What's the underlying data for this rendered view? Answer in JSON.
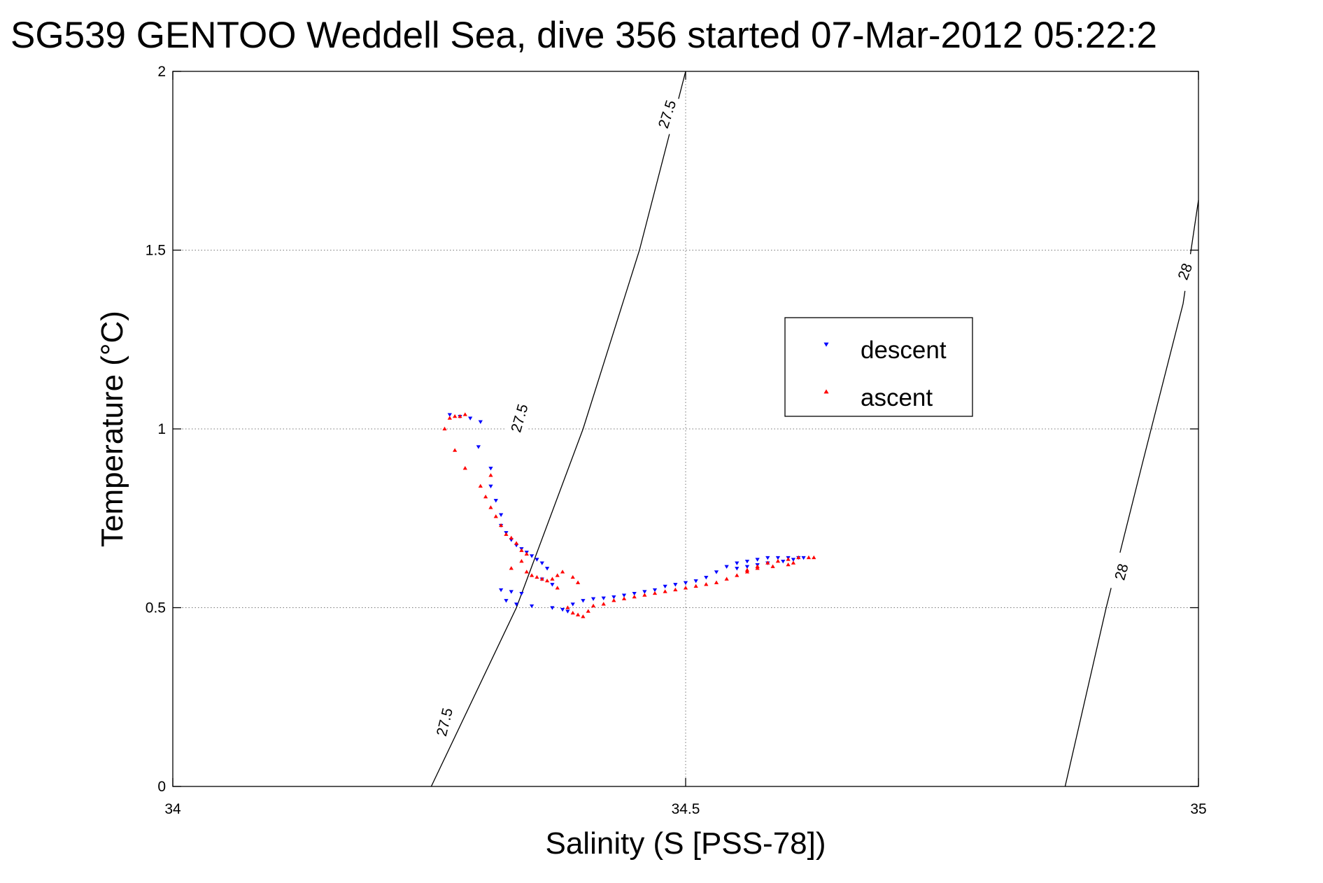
{
  "chart_data": {
    "type": "scatter",
    "title": "SG539 GENTOO Weddell Sea, dive 356 started 07-Mar-2012 05:22:2",
    "xlabel": "Salinity (S [PSS-78])",
    "ylabel": "Temperature (°C)",
    "xlim": [
      34,
      35
    ],
    "ylim": [
      0,
      2
    ],
    "x_ticks": [
      34,
      34.5,
      35
    ],
    "x_tick_labels": [
      "34",
      "34.5",
      "35"
    ],
    "y_ticks": [
      0,
      0.5,
      1,
      1.5,
      2
    ],
    "y_tick_labels": [
      "0",
      "0.5",
      "1",
      "1.5",
      "2"
    ],
    "grid": true,
    "legend_position": "upper-right",
    "series": [
      {
        "name": "descent",
        "color": "#0000ff",
        "marker": "triangle-down",
        "points": [
          [
            34.27,
            1.04
          ],
          [
            34.28,
            1.035
          ],
          [
            34.29,
            1.03
          ],
          [
            34.3,
            1.02
          ],
          [
            34.298,
            0.95
          ],
          [
            34.31,
            0.89
          ],
          [
            34.31,
            0.84
          ],
          [
            34.315,
            0.8
          ],
          [
            34.32,
            0.76
          ],
          [
            34.32,
            0.73
          ],
          [
            34.325,
            0.71
          ],
          [
            34.33,
            0.69
          ],
          [
            34.335,
            0.675
          ],
          [
            34.34,
            0.665
          ],
          [
            34.345,
            0.655
          ],
          [
            34.35,
            0.645
          ],
          [
            34.355,
            0.635
          ],
          [
            34.36,
            0.625
          ],
          [
            34.365,
            0.61
          ],
          [
            34.36,
            0.58
          ],
          [
            34.37,
            0.565
          ],
          [
            34.32,
            0.55
          ],
          [
            34.33,
            0.545
          ],
          [
            34.34,
            0.54
          ],
          [
            34.325,
            0.52
          ],
          [
            34.335,
            0.51
          ],
          [
            34.35,
            0.505
          ],
          [
            34.37,
            0.5
          ],
          [
            34.38,
            0.495
          ],
          [
            34.385,
            0.49
          ],
          [
            34.39,
            0.51
          ],
          [
            34.4,
            0.52
          ],
          [
            34.41,
            0.525
          ],
          [
            34.42,
            0.527
          ],
          [
            34.43,
            0.53
          ],
          [
            34.44,
            0.535
          ],
          [
            34.45,
            0.54
          ],
          [
            34.46,
            0.545
          ],
          [
            34.47,
            0.55
          ],
          [
            34.48,
            0.56
          ],
          [
            34.49,
            0.565
          ],
          [
            34.5,
            0.57
          ],
          [
            34.51,
            0.575
          ],
          [
            34.52,
            0.585
          ],
          [
            34.53,
            0.6
          ],
          [
            34.54,
            0.615
          ],
          [
            34.55,
            0.625
          ],
          [
            34.56,
            0.63
          ],
          [
            34.57,
            0.635
          ],
          [
            34.58,
            0.64
          ],
          [
            34.59,
            0.64
          ],
          [
            34.6,
            0.64
          ],
          [
            34.61,
            0.64
          ],
          [
            34.615,
            0.64
          ],
          [
            34.605,
            0.635
          ],
          [
            34.595,
            0.63
          ],
          [
            34.58,
            0.625
          ],
          [
            34.57,
            0.62
          ],
          [
            34.56,
            0.615
          ],
          [
            34.55,
            0.61
          ]
        ]
      },
      {
        "name": "ascent",
        "color": "#ff0000",
        "marker": "triangle-up",
        "points": [
          [
            34.265,
            1.0
          ],
          [
            34.27,
            1.03
          ],
          [
            34.275,
            1.035
          ],
          [
            34.28,
            1.035
          ],
          [
            34.285,
            1.04
          ],
          [
            34.275,
            0.94
          ],
          [
            34.285,
            0.89
          ],
          [
            34.31,
            0.87
          ],
          [
            34.3,
            0.84
          ],
          [
            34.305,
            0.81
          ],
          [
            34.31,
            0.78
          ],
          [
            34.315,
            0.755
          ],
          [
            34.32,
            0.73
          ],
          [
            34.325,
            0.705
          ],
          [
            34.33,
            0.695
          ],
          [
            34.335,
            0.68
          ],
          [
            34.34,
            0.66
          ],
          [
            34.345,
            0.65
          ],
          [
            34.34,
            0.63
          ],
          [
            34.33,
            0.61
          ],
          [
            34.345,
            0.6
          ],
          [
            34.35,
            0.59
          ],
          [
            34.355,
            0.585
          ],
          [
            34.36,
            0.58
          ],
          [
            34.365,
            0.575
          ],
          [
            34.37,
            0.58
          ],
          [
            34.375,
            0.59
          ],
          [
            34.38,
            0.6
          ],
          [
            34.39,
            0.585
          ],
          [
            34.395,
            0.57
          ],
          [
            34.375,
            0.555
          ],
          [
            34.385,
            0.5
          ],
          [
            34.39,
            0.485
          ],
          [
            34.395,
            0.48
          ],
          [
            34.4,
            0.475
          ],
          [
            34.405,
            0.49
          ],
          [
            34.41,
            0.505
          ],
          [
            34.42,
            0.51
          ],
          [
            34.43,
            0.52
          ],
          [
            34.44,
            0.525
          ],
          [
            34.45,
            0.53
          ],
          [
            34.46,
            0.535
          ],
          [
            34.47,
            0.54
          ],
          [
            34.48,
            0.545
          ],
          [
            34.49,
            0.55
          ],
          [
            34.5,
            0.555
          ],
          [
            34.51,
            0.56
          ],
          [
            34.52,
            0.565
          ],
          [
            34.53,
            0.57
          ],
          [
            34.54,
            0.58
          ],
          [
            34.55,
            0.59
          ],
          [
            34.56,
            0.6
          ],
          [
            34.57,
            0.615
          ],
          [
            34.58,
            0.625
          ],
          [
            34.59,
            0.63
          ],
          [
            34.6,
            0.635
          ],
          [
            34.61,
            0.64
          ],
          [
            34.62,
            0.64
          ],
          [
            34.625,
            0.64
          ],
          [
            34.6,
            0.62
          ],
          [
            34.585,
            0.615
          ],
          [
            34.57,
            0.61
          ],
          [
            34.56,
            0.605
          ],
          [
            34.605,
            0.625
          ]
        ]
      }
    ],
    "density_contours": [
      {
        "label": "27.5",
        "points": [
          [
            34.252,
            0
          ],
          [
            34.335,
            0.5
          ],
          [
            34.4,
            1.0
          ],
          [
            34.455,
            1.5
          ],
          [
            34.5,
            2.0
          ]
        ],
        "labels_at": [
          [
            34.265,
            0.18,
            76
          ],
          [
            34.338,
            1.03,
            74
          ],
          [
            34.482,
            1.88,
            72
          ]
        ]
      },
      {
        "label": "28",
        "points": [
          [
            34.87,
            0
          ],
          [
            34.91,
            0.5
          ],
          [
            34.945,
            0.9
          ],
          [
            34.985,
            1.35
          ],
          [
            35.0,
            1.64
          ]
        ],
        "labels_at": [
          [
            34.925,
            0.6,
            75
          ],
          [
            34.987,
            1.44,
            70
          ]
        ]
      }
    ]
  }
}
